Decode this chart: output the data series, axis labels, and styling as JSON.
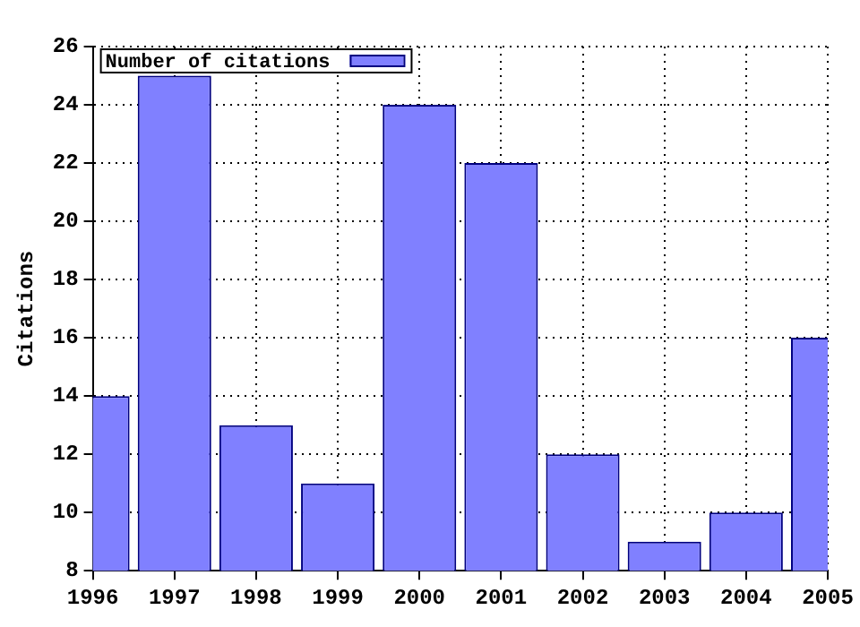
{
  "chart_data": {
    "type": "bar",
    "ylabel": "Citations",
    "x": [
      1996,
      1997,
      1998,
      1999,
      2000,
      2001,
      2002,
      2003,
      2004,
      2005
    ],
    "series": [
      {
        "name": "Number of citations",
        "color": "#8080ff",
        "values": [
          14,
          25,
          13,
          11,
          24,
          22,
          12,
          9,
          10,
          16
        ]
      }
    ],
    "xlim": [
      1996,
      2005
    ],
    "xticks": [
      1996,
      1997,
      1998,
      1999,
      2000,
      2001,
      2002,
      2003,
      2004,
      2005
    ],
    "ylim": [
      8,
      26
    ],
    "yticks": [
      8,
      10,
      12,
      14,
      16,
      18,
      20,
      22,
      24,
      26
    ],
    "grid": true,
    "legend": "top left"
  }
}
